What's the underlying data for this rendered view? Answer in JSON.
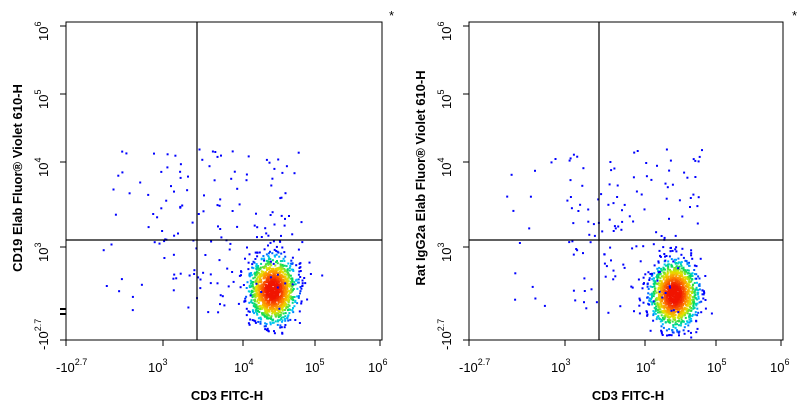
{
  "chart_data": [
    {
      "type": "scatter",
      "panel": "left",
      "xlabel": "CD3 FITC-H",
      "ylabel": "CD19 Elab Fluor® Violet 610-H",
      "corner_mark": "*",
      "x_scale": "biexponential-log",
      "y_scale": "biexponential-log",
      "xlim": [
        "-10^2.7",
        "10^6"
      ],
      "ylim": [
        "-10^2.7",
        "10^6"
      ],
      "x_ticks": [
        {
          "base": "-10",
          "exp": "2.7"
        },
        {
          "base": "10",
          "exp": "3"
        },
        {
          "base": "10",
          "exp": "4"
        },
        {
          "base": "10",
          "exp": "5"
        },
        {
          "base": "10",
          "exp": "6"
        }
      ],
      "y_ticks": [
        {
          "base": "-10",
          "exp": "2.7"
        },
        {
          "base": "10",
          "exp": "3"
        },
        {
          "base": "10",
          "exp": "4"
        },
        {
          "base": "10",
          "exp": "5"
        },
        {
          "base": "10",
          "exp": "6"
        }
      ],
      "quadrant_gate": {
        "x_log10": 3.45,
        "y_log10": 3.0
      },
      "populations": [
        {
          "x_log10": 2.35,
          "y_log10": 3.6,
          "spread_x": 0.22,
          "spread_y": 0.2,
          "density": "high"
        },
        {
          "x_log10": 2.4,
          "y_log10": 2.55,
          "spread_x": 0.2,
          "spread_y": 0.25,
          "density": "medium"
        },
        {
          "x_log10": 4.4,
          "y_log10": 2.55,
          "spread_x": 0.16,
          "spread_y": 0.17,
          "density": "high"
        }
      ],
      "grid": false
    },
    {
      "type": "scatter",
      "panel": "right",
      "xlabel": "CD3 FITC-H",
      "ylabel": "Rat IgG2a Elab Fluor® Violet 610-H",
      "corner_mark": "*",
      "x_scale": "biexponential-log",
      "y_scale": "biexponential-log",
      "xlim": [
        "-10^2.7",
        "10^6"
      ],
      "ylim": [
        "-10^2.7",
        "10^6"
      ],
      "x_ticks": [
        {
          "base": "-10",
          "exp": "2.7"
        },
        {
          "base": "10",
          "exp": "3"
        },
        {
          "base": "10",
          "exp": "4"
        },
        {
          "base": "10",
          "exp": "5"
        },
        {
          "base": "10",
          "exp": "6"
        }
      ],
      "y_ticks": [
        {
          "base": "-10",
          "exp": "2.7"
        },
        {
          "base": "10",
          "exp": "3"
        },
        {
          "base": "10",
          "exp": "4"
        },
        {
          "base": "10",
          "exp": "5"
        },
        {
          "base": "10",
          "exp": "6"
        }
      ],
      "quadrant_gate": {
        "x_log10": 3.45,
        "y_log10": 3.0
      },
      "populations": [
        {
          "x_log10": 2.3,
          "y_log10": 2.5,
          "spread_x": 0.2,
          "spread_y": 0.22,
          "density": "high"
        },
        {
          "x_log10": 4.4,
          "y_log10": 2.5,
          "spread_x": 0.16,
          "spread_y": 0.17,
          "density": "high"
        }
      ],
      "grid": false
    }
  ]
}
